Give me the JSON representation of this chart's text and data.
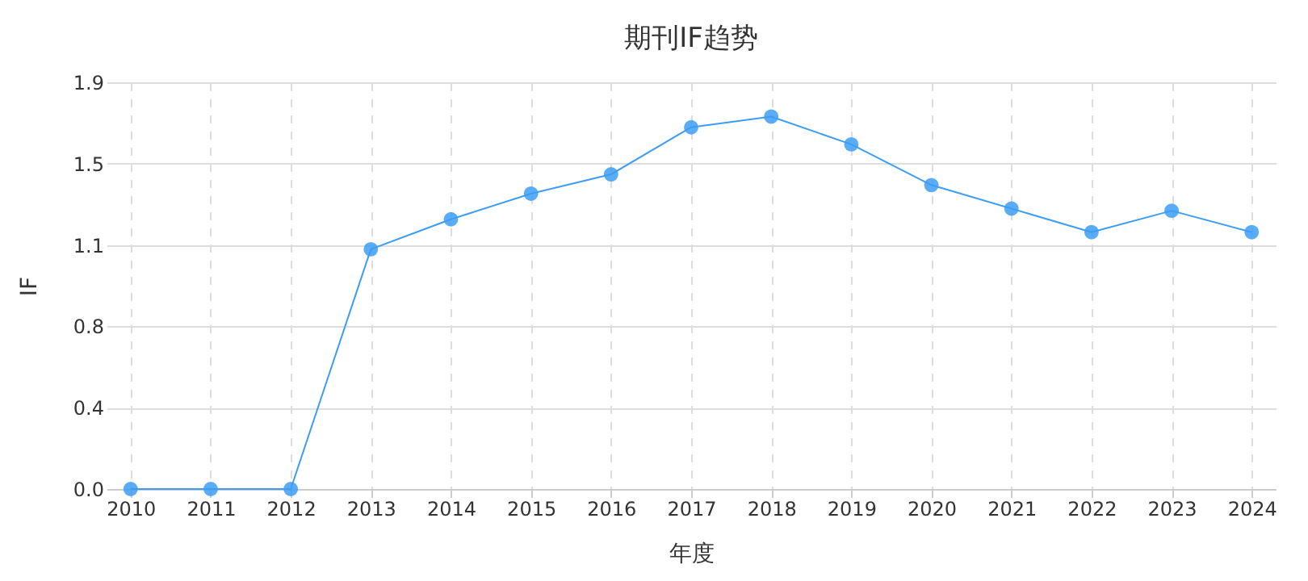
{
  "chart_data": {
    "type": "line",
    "title": "期刊IF趋势",
    "xlabel": "年度",
    "ylabel": "IF",
    "categories": [
      "2010",
      "2011",
      "2012",
      "2013",
      "2014",
      "2015",
      "2016",
      "2017",
      "2018",
      "2019",
      "2020",
      "2021",
      "2022",
      "2023",
      "2024"
    ],
    "series": [
      {
        "color": "#3d9df5",
        "values": [
          0,
          0,
          0,
          1.12,
          1.26,
          1.38,
          1.47,
          1.69,
          1.74,
          1.61,
          1.42,
          1.31,
          1.2,
          1.3,
          1.2
        ]
      }
    ],
    "ylim": [
      0,
      1.9
    ],
    "yticks": [
      {
        "value": 0,
        "label": "0.0"
      },
      {
        "value": 0.38,
        "label": "0.4"
      },
      {
        "value": 0.76,
        "label": "0.8"
      },
      {
        "value": 1.14,
        "label": "1.1"
      },
      {
        "value": 1.52,
        "label": "1.5"
      },
      {
        "value": 1.9,
        "label": "1.9"
      }
    ],
    "grid": true,
    "marker": "circle",
    "line_style": "solid"
  }
}
